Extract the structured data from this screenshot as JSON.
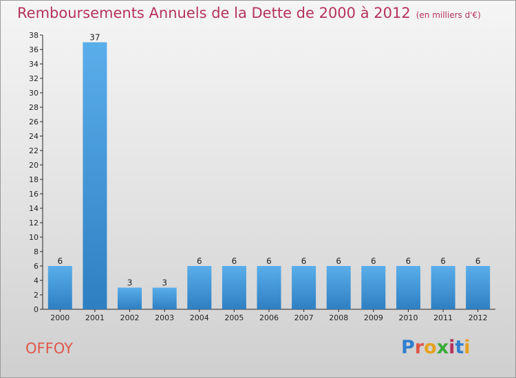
{
  "header": {
    "title": "Remboursements Annuels de la Dette de 2000 à 2012",
    "unit": "(en milliers d'€)"
  },
  "footer": {
    "commune": "OFFOY",
    "logo": "Proxiti"
  },
  "colors": {
    "title": "#b5325c",
    "commune": "#e0564a",
    "bar_light": "#5aaeea",
    "bar_dark": "#2e7fc2",
    "logo_letters": [
      "#2f7fd0",
      "#e0564a",
      "#e6a21c",
      "#3aaa35",
      "#b5325c",
      "#2f7fd0",
      "#e6a21c"
    ]
  },
  "chart_data": {
    "type": "bar",
    "title": "Remboursements Annuels de la Dette de 2000 à 2012",
    "ylabel": "(en milliers d'€)",
    "categories": [
      "2000",
      "2001",
      "2002",
      "2003",
      "2004",
      "2005",
      "2006",
      "2007",
      "2008",
      "2009",
      "2010",
      "2011",
      "2012"
    ],
    "values": [
      6,
      37,
      3,
      3,
      6,
      6,
      6,
      6,
      6,
      6,
      6,
      6,
      6
    ],
    "ylim": [
      0,
      38
    ],
    "yticks": [
      0,
      2,
      4,
      6,
      8,
      10,
      12,
      14,
      16,
      18,
      20,
      22,
      24,
      26,
      28,
      30,
      32,
      34,
      36,
      38
    ],
    "grid": false,
    "legend": "none"
  }
}
